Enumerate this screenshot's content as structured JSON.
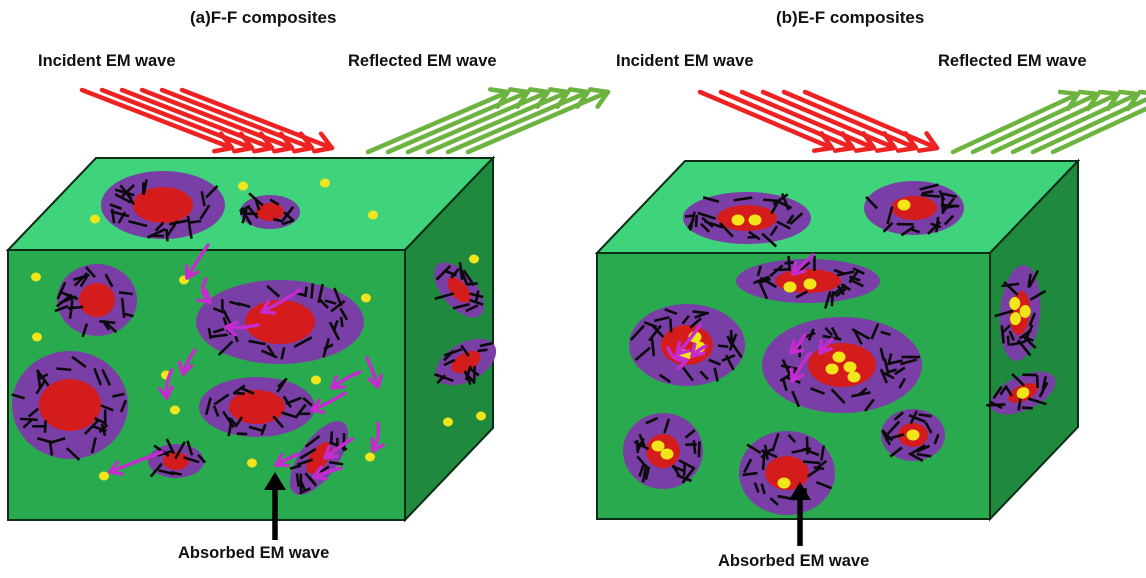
{
  "panel_a": {
    "title": "(a)F-F composites",
    "incident": "Incident EM wave",
    "reflected": "Reflected  EM wave",
    "absorbed": "Absorbed  EM wave"
  },
  "panel_b": {
    "title": "(b)E-F composites",
    "incident": "Incident EM wave",
    "reflected": "Reflected  EM wave",
    "absorbed": "Absorbed  EM wave"
  },
  "colors": {
    "top_face": "#3fd37c",
    "front_face": "#2aaa4e",
    "side_face": "#1f8a3d",
    "shell": "#7a3fa6",
    "core": "#d41c1c",
    "particle": "#f2e61a",
    "incident_arrow": "#ee2222",
    "reflected_arrow": "#6db33f",
    "absorbed_arrow": "#c52ccf",
    "absorbed_main_arrow": "#000000"
  }
}
